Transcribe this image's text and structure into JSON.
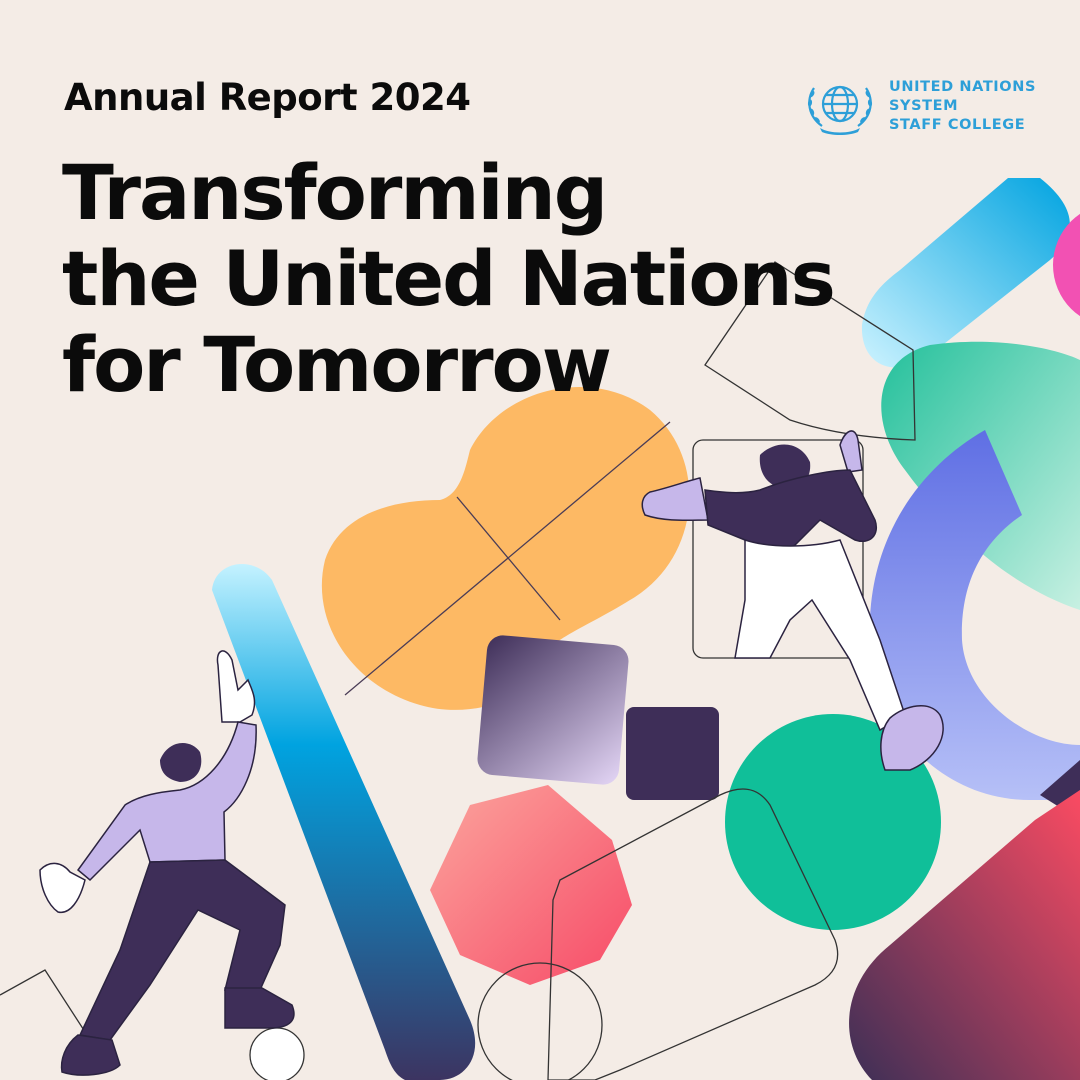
{
  "report": {
    "subtitle": "Annual Report 2024",
    "title_lines": [
      "Transforming",
      "the United Nations",
      "for Tomorrow"
    ]
  },
  "logo": {
    "lines": [
      "UNITED NATIONS",
      "SYSTEM",
      "STAFF COLLEGE"
    ],
    "icon": "un-emblem-icon",
    "color": "#2d9fd8"
  },
  "colors": {
    "background": "#f4ece6",
    "text": "#0b0b0b",
    "orange": "#fdb964",
    "green": "#10bf99",
    "purple_dark": "#3e2e58",
    "lavender": "#c6b7ea",
    "blue": "#00a3e0",
    "pink_red": "#f4596b"
  }
}
